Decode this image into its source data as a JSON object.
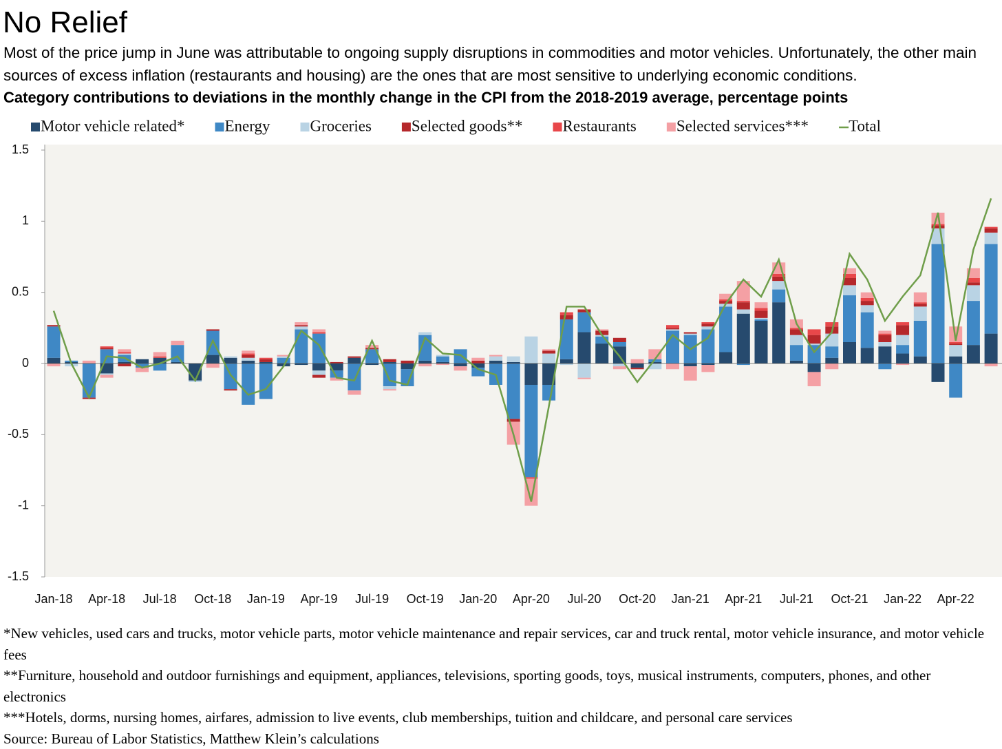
{
  "chart_data": {
    "type": "bar",
    "stacked": true,
    "title": "No Relief",
    "subtitle": "Most of the price jump in June was attributable to ongoing supply disruptions in commodities and motor vehicles. Unfortunately, the other main sources of excess inflation (restaurants and housing) are the ones that are most sensitive to underlying economic conditions.",
    "heading": "Category contributions to deviations in the monthly change in the CPI from the 2018-2019 average, percentage points",
    "categories": [
      "Jan-18",
      null,
      null,
      "Apr-18",
      null,
      null,
      "Jul-18",
      null,
      null,
      "Oct-18",
      null,
      null,
      "Jan-19",
      null,
      null,
      "Apr-19",
      null,
      null,
      "Jul-19",
      null,
      null,
      "Oct-19",
      null,
      null,
      "Jan-20",
      null,
      null,
      "Apr-20",
      null,
      null,
      "Jul-20",
      null,
      null,
      "Oct-20",
      null,
      null,
      "Jan-21",
      null,
      null,
      "Apr-21",
      null,
      null,
      "Jul-21",
      null,
      null,
      "Oct-21",
      null,
      null,
      "Jan-22",
      null,
      null,
      "Apr-22",
      null,
      null
    ],
    "series": [
      {
        "name": "Motor vehicle related*",
        "color": "#264a6e",
        "values": [
          0.04,
          0.01,
          0,
          -0.07,
          0.01,
          0.03,
          0.04,
          0.01,
          -0.12,
          0.06,
          0.04,
          0.02,
          0.01,
          -0.02,
          -0.01,
          -0.05,
          -0.05,
          0.04,
          -0.01,
          0.01,
          -0.04,
          0.02,
          0.01,
          -0.02,
          -0.03,
          0.02,
          0.01,
          -0.15,
          -0.15,
          0.03,
          0.22,
          0.14,
          0.12,
          -0.03,
          0.01,
          0,
          -0.02,
          -0.01,
          0.08,
          0.35,
          0.3,
          0.43,
          0.02,
          -0.06,
          0.04,
          0.15,
          0.11,
          0.12,
          0.07,
          0.05,
          -0.13,
          0.05,
          0.13,
          0.21
        ]
      },
      {
        "name": "Energy",
        "color": "#3f88c5",
        "values": [
          0.22,
          0.01,
          -0.24,
          0.1,
          0.05,
          -0.03,
          -0.05,
          0.12,
          0,
          0.17,
          -0.18,
          -0.29,
          -0.25,
          0.04,
          0.24,
          0.21,
          -0.05,
          -0.19,
          0.1,
          -0.16,
          -0.12,
          0.18,
          0.04,
          0.1,
          -0.06,
          -0.15,
          -0.39,
          -0.65,
          -0.11,
          0.28,
          0.14,
          0.05,
          0.03,
          0,
          0.02,
          0.23,
          0.2,
          0.24,
          0.32,
          -0.01,
          0.01,
          0.09,
          0.11,
          0.13,
          0.08,
          0.33,
          0.25,
          -0.04,
          0.06,
          0.25,
          0.84,
          -0.24,
          0.31,
          0.63
        ]
      },
      {
        "name": "Groceries",
        "color": "#b9d3e4",
        "values": [
          0,
          -0.02,
          0,
          -0.01,
          0.01,
          0,
          0,
          0,
          -0.01,
          0,
          0.01,
          0.02,
          0,
          0.01,
          0.02,
          -0.03,
          0,
          0,
          0,
          -0.02,
          0,
          0.02,
          0.01,
          0,
          0,
          0.03,
          0.04,
          0.19,
          0.07,
          -0.01,
          -0.1,
          0.01,
          -0.02,
          0,
          -0.04,
          0.01,
          0.01,
          0.02,
          0.02,
          0.03,
          0.01,
          0.06,
          0.07,
          0.01,
          0.09,
          0.07,
          0.05,
          0.03,
          0.07,
          0.1,
          0.11,
          0.08,
          0.11,
          0.08
        ]
      },
      {
        "name": "Selected goods**",
        "color": "#b5282b",
        "values": [
          0.01,
          0,
          -0.01,
          0.01,
          -0.02,
          0,
          0,
          0,
          0,
          0.01,
          -0.01,
          0.02,
          0.02,
          0,
          0.01,
          -0.02,
          0.01,
          0.01,
          0.01,
          0.02,
          0.02,
          0,
          0,
          0,
          0.02,
          0,
          -0.02,
          0,
          0.02,
          0.03,
          0.02,
          0.03,
          0.03,
          -0.01,
          0,
          0.01,
          0.01,
          0.02,
          0.02,
          0.05,
          0.05,
          0.03,
          0.04,
          0.06,
          0.05,
          0.05,
          0.03,
          0.05,
          0.07,
          0.02,
          0.02,
          0.01,
          0.02,
          0.03
        ]
      },
      {
        "name": "Restaurants",
        "color": "#e8474a",
        "values": [
          0,
          0,
          0,
          0.01,
          0.01,
          0,
          0.01,
          0,
          0,
          0,
          0,
          0.01,
          0.01,
          0,
          0,
          0.01,
          0,
          0,
          0,
          0,
          0,
          0,
          0,
          0,
          0,
          0,
          0,
          -0.01,
          0,
          0.02,
          0,
          0,
          0,
          0,
          0,
          0.02,
          0,
          0.01,
          0.01,
          0.01,
          0.02,
          0.02,
          0.01,
          0.04,
          0.03,
          0.03,
          0.02,
          0.01,
          0.02,
          0.01,
          0.01,
          0.01,
          0.03,
          0.01
        ]
      },
      {
        "name": "Selected services***",
        "color": "#f4a0a4",
        "values": [
          -0.02,
          0,
          0.02,
          -0.02,
          0.02,
          -0.03,
          0.03,
          0.03,
          0,
          -0.03,
          0,
          0.02,
          0,
          0.01,
          0.02,
          0.02,
          -0.02,
          -0.03,
          0.02,
          -0.01,
          0,
          -0.02,
          -0.01,
          -0.03,
          0.02,
          0.01,
          -0.16,
          -0.19,
          0.01,
          0,
          -0.01,
          0.01,
          -0.02,
          0.03,
          0.07,
          -0.04,
          -0.1,
          -0.05,
          0.04,
          0.14,
          0.04,
          0.08,
          0.06,
          -0.1,
          -0.04,
          0.04,
          0.04,
          0.02,
          -0.01,
          0.07,
          0.08,
          0.11,
          0.07,
          -0.02
        ]
      },
      {
        "name": "Total",
        "color": "#6f9e4a",
        "type": "line",
        "values": [
          0.37,
          0,
          -0.24,
          0.05,
          0.04,
          -0.03,
          0,
          0.05,
          -0.12,
          0.16,
          -0.08,
          -0.22,
          -0.18,
          -0.02,
          0.23,
          0.13,
          -0.1,
          -0.12,
          0.16,
          -0.12,
          -0.15,
          0.18,
          0.07,
          0.06,
          -0.04,
          -0.08,
          -0.5,
          -0.97,
          -0.3,
          0.4,
          0.4,
          0.2,
          0.05,
          -0.13,
          0.03,
          0.2,
          0.1,
          0.18,
          0.42,
          0.59,
          0.47,
          0.73,
          0.28,
          0.08,
          0.22,
          0.77,
          0.59,
          0.3,
          0.47,
          0.62,
          1.06,
          0.16,
          0.8,
          1.16
        ]
      }
    ],
    "ylim": [
      -1.5,
      1.5
    ],
    "yticks": [
      -1.5,
      -1,
      -0.5,
      0,
      0.5,
      1,
      1.5
    ],
    "legend": "top",
    "notes": [
      "*New vehicles, used cars and trucks, motor vehicle parts, motor vehicle maintenance and repair services, car and truck rental, motor vehicle insurance, and motor vehicle fees",
      "**Furniture, household and outdoor furnishings and equipment, appliances, televisions, sporting goods, toys, musical instruments, computers, phones, and other electronics",
      "***Hotels, dorms, nursing homes, airfares, admission to live events, club memberships, tuition and childcare, and personal care services",
      "Source: Bureau of Labor Statistics, Matthew Klein’s calculations"
    ]
  }
}
